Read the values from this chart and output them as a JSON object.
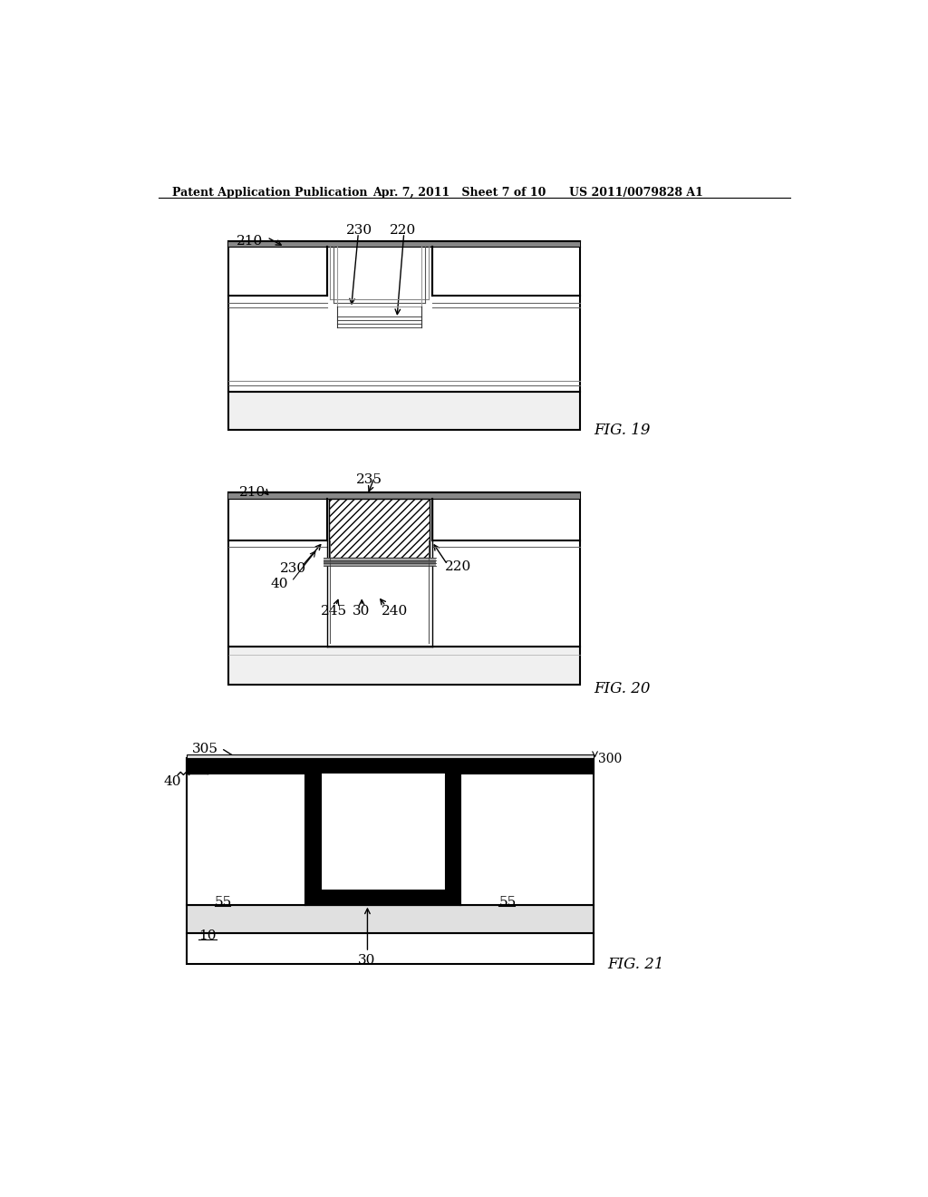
{
  "header_left": "Patent Application Publication",
  "header_mid": "Apr. 7, 2011   Sheet 7 of 10",
  "header_right": "US 2011/0079828 A1",
  "bg_color": "#ffffff",
  "fig19_label": "FIG. 19",
  "fig20_label": "FIG. 20",
  "fig21_label": "FIG. 21"
}
